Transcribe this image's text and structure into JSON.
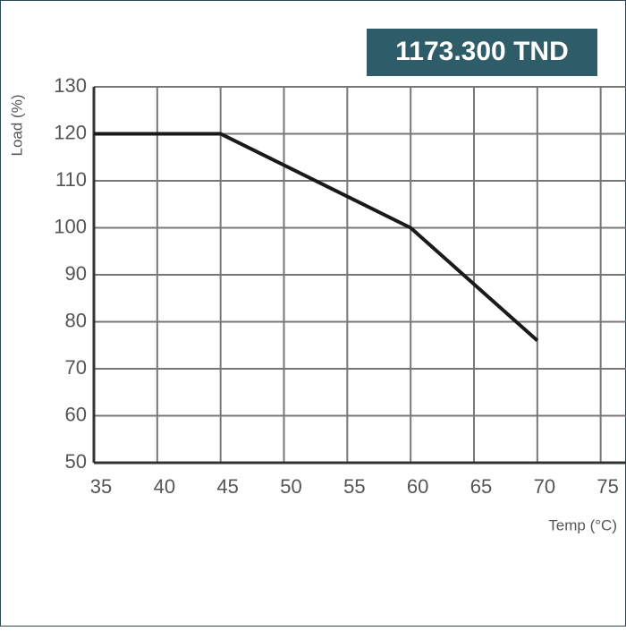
{
  "badge": "1173.300 TND",
  "chart_data": {
    "type": "line",
    "x_label": "Temp (°C)",
    "y_label": "Load (%)",
    "x": [
      35,
      45,
      60,
      70
    ],
    "series": [
      {
        "color": "#1a1a1a",
        "values": [
          120,
          120,
          100,
          76
        ]
      }
    ],
    "xlim": [
      35,
      77
    ],
    "xticks": [
      35,
      40,
      45,
      50,
      55,
      60,
      65,
      70,
      75
    ],
    "ylim": [
      50,
      130
    ],
    "yticks": [
      50,
      60,
      70,
      80,
      90,
      100,
      110,
      120,
      130
    ],
    "grid": true
  }
}
